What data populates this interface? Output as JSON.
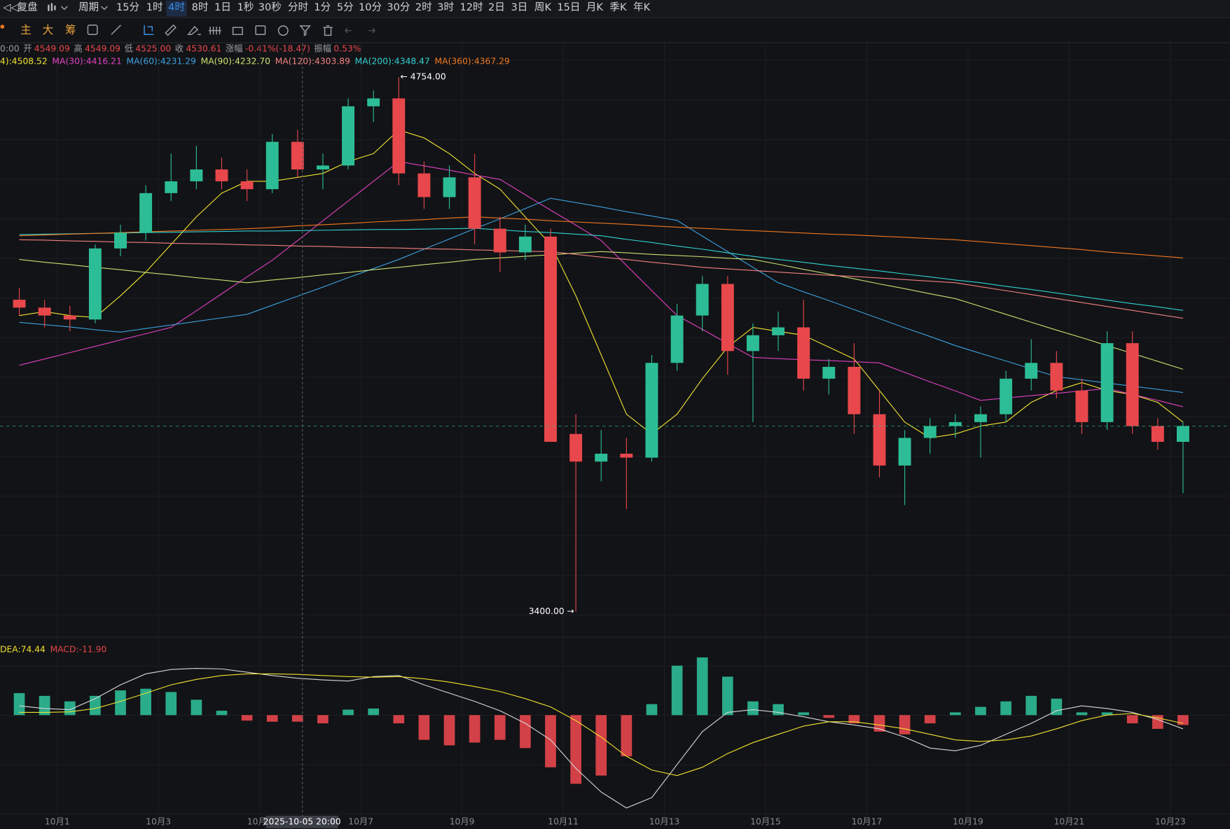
{
  "toolbar": {
    "replay": "复盘",
    "period": "周期",
    "intervals": [
      "15分",
      "1时",
      "4时",
      "8时",
      "1日",
      "1秒",
      "30秒",
      "分时",
      "1分",
      "5分",
      "10分",
      "30分",
      "2时",
      "3时",
      "12时",
      "2日",
      "3日",
      "周K",
      "15日",
      "月K",
      "季K",
      "年K"
    ],
    "active": "4时"
  },
  "toolbar2": {
    "items": [
      "主",
      "大",
      "筹"
    ]
  },
  "info": {
    "time": "0:00",
    "fields": [
      {
        "label": "开",
        "value": "4549.09"
      },
      {
        "label": "高",
        "value": "4549.09"
      },
      {
        "label": "低",
        "value": "4525.00"
      },
      {
        "label": "收",
        "value": "4530.61"
      },
      {
        "label": "涨幅",
        "value": "-0.41%(-18.47)"
      },
      {
        "label": "振幅",
        "value": "0.53%"
      }
    ]
  },
  "crosshair": {
    "label": "2025-10-05 20:00"
  },
  "chart_data": [
    {
      "type": "candlestick",
      "ylim": [
        3340,
        4840
      ],
      "categories": [
        null,
        null,
        "10月1",
        null,
        null,
        null,
        "10月3",
        null,
        null,
        null,
        "10月5",
        null,
        null,
        null,
        "10月7",
        null,
        null,
        null,
        "10月9",
        null,
        null,
        null,
        "10月11",
        null,
        null,
        null,
        "10月13",
        null,
        null,
        null,
        "10月15",
        null,
        null,
        null,
        "10月17",
        null,
        null,
        null,
        "10月19",
        null,
        null,
        null,
        "10月21",
        null,
        null,
        null,
        "10月23"
      ],
      "up_color": "#2dbd96",
      "down_color": "#e8474c",
      "open": [
        4190,
        4170,
        4150,
        4140,
        4320,
        4360,
        4460,
        4490,
        4520,
        4490,
        4470,
        4590,
        4520,
        4530,
        4680,
        4700,
        4510,
        4450,
        4500,
        4370,
        4310,
        4350,
        3850,
        3780,
        3800,
        3790,
        4030,
        4150,
        4230,
        4060,
        4100,
        4120,
        3990,
        4020,
        3900,
        3770,
        3840,
        3870,
        3880,
        3900,
        3990,
        4030,
        3960,
        3880,
        4080,
        3870,
        3830
      ],
      "high": [
        4220,
        4190,
        4175,
        4330,
        4380,
        4480,
        4560,
        4580,
        4550,
        4520,
        4610,
        4620,
        4560,
        4700,
        4720,
        4754,
        4540,
        4530,
        4560,
        4400,
        4380,
        4370,
        3900,
        3860,
        3840,
        4050,
        4180,
        4250,
        4250,
        4130,
        4160,
        4190,
        4040,
        4080,
        3960,
        3860,
        3890,
        3900,
        3920,
        4010,
        4090,
        4060,
        3990,
        4110,
        4110,
        3890,
        3880
      ],
      "low": [
        4150,
        4120,
        4110,
        4130,
        4300,
        4340,
        4440,
        4470,
        4470,
        4440,
        4460,
        4500,
        4470,
        4520,
        4640,
        4480,
        4420,
        4420,
        4330,
        4260,
        4290,
        3830,
        3400,
        3730,
        3660,
        3780,
        4010,
        4110,
        4000,
        3880,
        4060,
        3960,
        3950,
        3850,
        3740,
        3670,
        3800,
        3840,
        3790,
        3880,
        3960,
        3940,
        3850,
        3860,
        3850,
        3810,
        3700
      ],
      "close": [
        4170,
        4150,
        4140,
        4320,
        4360,
        4460,
        4490,
        4520,
        4490,
        4470,
        4590,
        4520,
        4530,
        4680,
        4700,
        4510,
        4450,
        4500,
        4370,
        4310,
        4350,
        3830,
        3780,
        3800,
        3790,
        4030,
        4150,
        4230,
        4060,
        4100,
        4120,
        3990,
        4020,
        3900,
        3770,
        3840,
        3870,
        3880,
        3900,
        3990,
        4030,
        3960,
        3880,
        4080,
        3870,
        3830,
        3870
      ],
      "max_label": "← 4754.00",
      "min_label": "3400.00 →",
      "series": [
        {
          "label": "4):4508.52",
          "color": "#f0e130",
          "values": [
            4150,
            4160,
            4150,
            4145,
            4200,
            4260,
            4330,
            4400,
            4460,
            4490,
            4490,
            4500,
            4510,
            4540,
            4560,
            4620,
            4600,
            4560,
            4510,
            4470,
            4400,
            4330,
            4200,
            4050,
            3900,
            3850,
            3900,
            3990,
            4070,
            4120,
            4110,
            4100,
            4070,
            4040,
            3960,
            3880,
            3840,
            3850,
            3870,
            3880,
            3930,
            3960,
            3980,
            3960,
            3950,
            3930,
            3880
          ]
        },
        {
          "label": "MA(30):4416.21",
          "color": "#e040c0",
          "values": [
            4024,
            4040,
            4056,
            4072,
            4088,
            4104,
            4120,
            4162,
            4205,
            4248,
            4290,
            4340,
            4390,
            4440,
            4490,
            4540,
            4529,
            4518,
            4506,
            4495,
            4456,
            4417,
            4379,
            4340,
            4277,
            4213,
            4150,
            4115,
            4079,
            4044,
            4041,
            4038,
            4036,
            4033,
            4030,
            4006,
            3982,
            3959,
            3935,
            3941,
            3947,
            3953,
            3959,
            3965,
            3950,
            3935,
            3919
          ]
        },
        {
          "label": "MA(60):4231.29",
          "color": "#3aa0e0",
          "values": [
            4133,
            4127,
            4121,
            4114,
            4108,
            4117,
            4126,
            4135,
            4144,
            4153,
            4176,
            4199,
            4222,
            4246,
            4269,
            4292,
            4318,
            4344,
            4370,
            4395,
            4421,
            4447,
            4436,
            4425,
            4413,
            4402,
            4391,
            4351,
            4312,
            4272,
            4233,
            4210,
            4188,
            4165,
            4142,
            4119,
            4097,
            4074,
            4054,
            4035,
            4015,
            3995,
            3987,
            3979,
            3971,
            3963,
            3955
          ]
        },
        {
          "label": "MA(90):4232.70",
          "color": "#c8e070",
          "values": [
            4292,
            4285,
            4279,
            4272,
            4266,
            4259,
            4253,
            4246,
            4240,
            4233,
            4240,
            4246,
            4253,
            4259,
            4266,
            4272,
            4279,
            4285,
            4292,
            4296,
            4300,
            4304,
            4308,
            4312,
            4309,
            4305,
            4302,
            4299,
            4295,
            4292,
            4280,
            4267,
            4255,
            4243,
            4230,
            4218,
            4205,
            4193,
            4173,
            4153,
            4133,
            4113,
            4094,
            4074,
            4054,
            4034,
            4014
          ]
        },
        {
          "label": "MA(120):4303.89",
          "color": "#f08080",
          "values": [
            4342,
            4341,
            4339,
            4338,
            4336,
            4335,
            4333,
            4332,
            4331,
            4329,
            4328,
            4326,
            4325,
            4323,
            4322,
            4321,
            4319,
            4318,
            4316,
            4315,
            4313,
            4312,
            4305,
            4298,
            4292,
            4285,
            4279,
            4272,
            4268,
            4264,
            4260,
            4256,
            4252,
            4249,
            4245,
            4241,
            4237,
            4233,
            4223,
            4213,
            4203,
            4193,
            4183,
            4173,
            4163,
            4153,
            4143
          ]
        },
        {
          "label": "MA(200):4348.47",
          "color": "#30d0d0",
          "values": [
            4355,
            4356,
            4357,
            4358,
            4359,
            4360,
            4361,
            4362,
            4363,
            4364,
            4364,
            4365,
            4366,
            4367,
            4368,
            4368,
            4369,
            4370,
            4371,
            4367,
            4363,
            4360,
            4356,
            4352,
            4343,
            4335,
            4326,
            4318,
            4309,
            4300,
            4292,
            4285,
            4277,
            4270,
            4263,
            4255,
            4248,
            4240,
            4233,
            4224,
            4216,
            4207,
            4198,
            4189,
            4180,
            4172,
            4163
          ]
        },
        {
          "label": "MA(360):4367.29",
          "color": "#f07820",
          "values": [
            4352,
            4354,
            4356,
            4358,
            4360,
            4362,
            4364,
            4366,
            4368,
            4370,
            4373,
            4377,
            4380,
            4383,
            4387,
            4390,
            4393,
            4397,
            4400,
            4397,
            4394,
            4390,
            4387,
            4384,
            4381,
            4377,
            4374,
            4371,
            4368,
            4365,
            4362,
            4359,
            4356,
            4354,
            4351,
            4348,
            4345,
            4342,
            4337,
            4332,
            4327,
            4322,
            4317,
            4311,
            4306,
            4301,
            4296
          ]
        }
      ]
    },
    {
      "type": "macd",
      "ylim": [
        -183,
        131
      ],
      "hist": {
        "label": "MACD:-11.90",
        "up_color": "#2dbd96",
        "down_color": "#e8474c",
        "values": [
          40,
          35,
          25,
          35,
          45,
          48,
          42,
          28,
          8,
          -10,
          -12,
          -12,
          -15,
          10,
          12,
          -15,
          -45,
          -55,
          -50,
          -45,
          -60,
          -95,
          -125,
          -110,
          -75,
          20,
          90,
          105,
          70,
          25,
          20,
          5,
          -5,
          -15,
          -30,
          -35,
          -15,
          5,
          15,
          25,
          35,
          30,
          5,
          5,
          -15,
          -25,
          -18
        ]
      },
      "series": [
        {
          "color": "#d8d8d8",
          "values": [
            17,
            12,
            10,
            30,
            55,
            75,
            83,
            85,
            84,
            78,
            72,
            67,
            64,
            62,
            70,
            72,
            55,
            40,
            25,
            8,
            -15,
            -45,
            -97,
            -140,
            -169,
            -150,
            -90,
            -30,
            5,
            10,
            5,
            -3,
            -12,
            -18,
            -25,
            -40,
            -60,
            -65,
            -55,
            -35,
            -15,
            8,
            17,
            12,
            5,
            -8,
            -25
          ]
        },
        {
          "label": "DEA:74.44",
          "color": "#f0e130",
          "values": [
            5,
            5,
            6,
            12,
            25,
            40,
            55,
            65,
            72,
            75,
            75,
            74,
            72,
            70,
            69,
            70,
            66,
            60,
            52,
            43,
            30,
            15,
            -10,
            -40,
            -75,
            -100,
            -110,
            -95,
            -70,
            -50,
            -35,
            -20,
            -12,
            -12,
            -18,
            -25,
            -35,
            -45,
            -48,
            -45,
            -38,
            -25,
            -10,
            0,
            3,
            -5,
            -15
          ]
        }
      ]
    }
  ]
}
